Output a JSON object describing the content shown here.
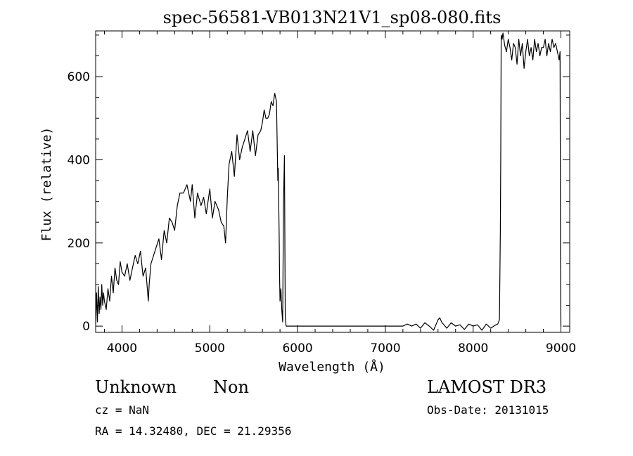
{
  "chart_data": {
    "type": "line",
    "title": "spec-56581-VB013N21V1_sp08-080.fits",
    "xlabel": "Wavelength (Å)",
    "ylabel": "Flux (relative)",
    "xlim": [
      3700,
      9100
    ],
    "ylim": [
      -15,
      710
    ],
    "xticks": [
      4000,
      5000,
      6000,
      7000,
      8000,
      9000
    ],
    "yticks": [
      0,
      200,
      400,
      600
    ],
    "x_minor_step": 200,
    "y_minor_step": 50,
    "grid": false,
    "legend": "none",
    "series": [
      {
        "color": "#000000",
        "x": [
          3700,
          3710,
          3720,
          3730,
          3740,
          3750,
          3760,
          3770,
          3780,
          3790,
          3800,
          3820,
          3840,
          3860,
          3880,
          3900,
          3920,
          3940,
          3960,
          3980,
          4000,
          4030,
          4060,
          4090,
          4120,
          4150,
          4180,
          4210,
          4240,
          4270,
          4300,
          4310,
          4330,
          4360,
          4390,
          4420,
          4450,
          4480,
          4510,
          4540,
          4570,
          4600,
          4630,
          4660,
          4700,
          4740,
          4780,
          4800,
          4830,
          4860,
          4900,
          4930,
          4960,
          5000,
          5030,
          5060,
          5100,
          5130,
          5160,
          5180,
          5200,
          5220,
          5250,
          5280,
          5310,
          5340,
          5370,
          5400,
          5430,
          5460,
          5490,
          5520,
          5550,
          5580,
          5600,
          5620,
          5640,
          5660,
          5680,
          5700,
          5720,
          5740,
          5760,
          5775,
          5780,
          5790,
          5795,
          5800,
          5810,
          5820,
          5830,
          5840,
          5850,
          5860,
          5870,
          5900,
          6000,
          6500,
          7000,
          7200,
          7250,
          7300,
          7350,
          7400,
          7450,
          7500,
          7550,
          7600,
          7620,
          7640,
          7660,
          7700,
          7750,
          7800,
          7850,
          7900,
          7950,
          8000,
          8050,
          8100,
          8150,
          8200,
          8250,
          8280,
          8300,
          8310,
          8315,
          8320,
          8330,
          8340,
          8360,
          8380,
          8400,
          8420,
          8440,
          8460,
          8480,
          8500,
          8520,
          8540,
          8560,
          8580,
          8600,
          8620,
          8640,
          8660,
          8680,
          8700,
          8720,
          8740,
          8760,
          8780,
          8800,
          8820,
          8840,
          8860,
          8880,
          8900,
          8920,
          8940,
          8960,
          8980,
          8990,
          8995,
          9000,
          9005
        ],
        "y": [
          5,
          80,
          10,
          95,
          30,
          70,
          40,
          100,
          50,
          80,
          60,
          40,
          90,
          60,
          120,
          80,
          140,
          110,
          100,
          155,
          130,
          120,
          150,
          110,
          140,
          170,
          150,
          180,
          120,
          140,
          60,
          100,
          150,
          170,
          190,
          210,
          160,
          230,
          200,
          260,
          250,
          230,
          290,
          320,
          320,
          340,
          300,
          340,
          260,
          320,
          290,
          310,
          270,
          330,
          260,
          300,
          280,
          250,
          240,
          200,
          310,
          390,
          420,
          360,
          460,
          400,
          430,
          450,
          470,
          420,
          470,
          410,
          460,
          470,
          490,
          520,
          500,
          500,
          510,
          540,
          530,
          560,
          540,
          350,
          380,
          220,
          120,
          60,
          90,
          40,
          10,
          300,
          410,
          20,
          0,
          0,
          0,
          0,
          0,
          0,
          5,
          0,
          5,
          -5,
          8,
          0,
          -10,
          15,
          20,
          10,
          5,
          -5,
          8,
          0,
          3,
          -8,
          5,
          0,
          3,
          -10,
          5,
          -5,
          2,
          5,
          15,
          230,
          420,
          700,
          690,
          705,
          675,
          660,
          690,
          670,
          640,
          680,
          670,
          630,
          690,
          650,
          680,
          620,
          660,
          690,
          650,
          670,
          640,
          690,
          660,
          680,
          650,
          670,
          670,
          690,
          650,
          680,
          660,
          690,
          670,
          680,
          660,
          640,
          660,
          200,
          0,
          0
        ]
      }
    ]
  },
  "footer": {
    "object_class": "Unknown",
    "object_subclass": "Non",
    "survey": "LAMOST DR3",
    "redshift": "cz = NaN",
    "obs_date": "Obs-Date: 20131015",
    "coordinates": "RA =  14.32480, DEC =  21.29356"
  }
}
